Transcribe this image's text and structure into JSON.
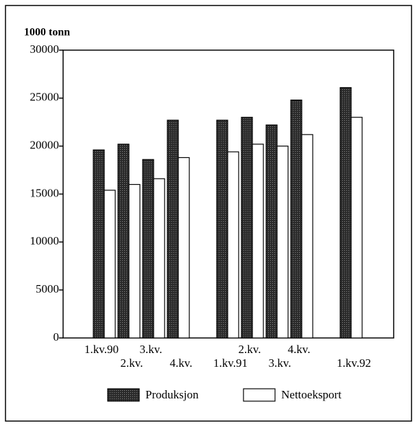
{
  "chart_data": {
    "type": "bar",
    "y_axis_label": "1000 tonn",
    "categories": [
      "1.kv.90",
      "2.kv.",
      "3.kv.",
      "4.kv.",
      null,
      "1.kv.91",
      "2.kv.",
      "3.kv.",
      "4.kv.",
      null,
      "1.kv.92"
    ],
    "series": [
      {
        "name": "Produksjon",
        "color": "#3a3a3a",
        "values": [
          19600,
          20200,
          18600,
          22700,
          null,
          22700,
          23000,
          22200,
          24800,
          null,
          26100
        ]
      },
      {
        "name": "Nettoeksport",
        "color": "#ffffff",
        "values": [
          15400,
          16000,
          16600,
          18800,
          null,
          19400,
          20200,
          20000,
          21200,
          null,
          23000
        ]
      }
    ],
    "ylim": [
      0,
      30000
    ],
    "yticks": [
      0,
      5000,
      10000,
      15000,
      20000,
      25000,
      30000
    ],
    "grid": false
  }
}
